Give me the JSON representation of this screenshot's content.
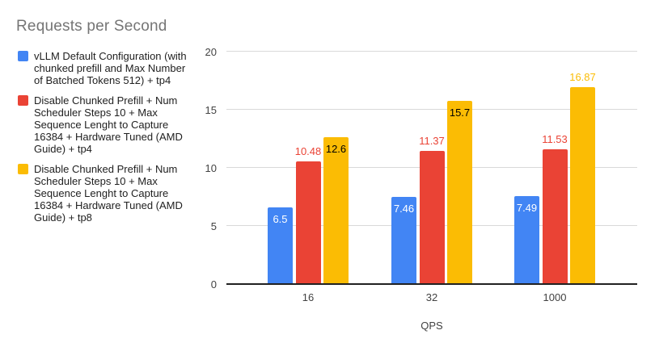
{
  "chart_data": {
    "type": "bar",
    "title": "Requests per Second",
    "xlabel": "QPS",
    "ylabel": "",
    "ylim": [
      0,
      20
    ],
    "yticks": [
      0,
      5,
      10,
      15,
      20
    ],
    "grid": true,
    "legend_position": "left",
    "categories": [
      "16",
      "32",
      "1000"
    ],
    "series": [
      {
        "name": "vLLM Default Configuration (with chunked prefill and Max Number of Batched Tokens 512) + tp4",
        "color": "#4285F4",
        "values": [
          6.5,
          7.46,
          7.49
        ],
        "data_labels": [
          "6.5",
          "7.46",
          "7.49"
        ],
        "label_placement": [
          "inside",
          "inside",
          "inside"
        ],
        "inside_label_color": "#ffffff"
      },
      {
        "name": "Disable Chunked Prefill + Num Scheduler Steps 10 + Max Sequence Lenght to Capture 16384 + Hardware Tuned (AMD Guide) + tp4",
        "color": "#EA4335",
        "values": [
          10.48,
          11.37,
          11.53
        ],
        "data_labels": [
          "10.48",
          "11.37",
          "11.53"
        ],
        "label_placement": [
          "above",
          "above",
          "above"
        ],
        "inside_label_color": "#ffffff"
      },
      {
        "name": "Disable Chunked Prefill + Num Scheduler Steps 10 + Max Sequence Lenght to Capture 16384 + Hardware Tuned (AMD Guide) + tp8",
        "color": "#FBBC04",
        "values": [
          12.6,
          15.7,
          16.87
        ],
        "data_labels": [
          "12.6",
          "15.7",
          "16.87"
        ],
        "label_placement": [
          "inside",
          "inside",
          "above"
        ],
        "inside_label_color": "#000000"
      }
    ],
    "title_color": "#757575",
    "gridline_color": "#d9d9d9",
    "baseline_color": "#212121"
  }
}
